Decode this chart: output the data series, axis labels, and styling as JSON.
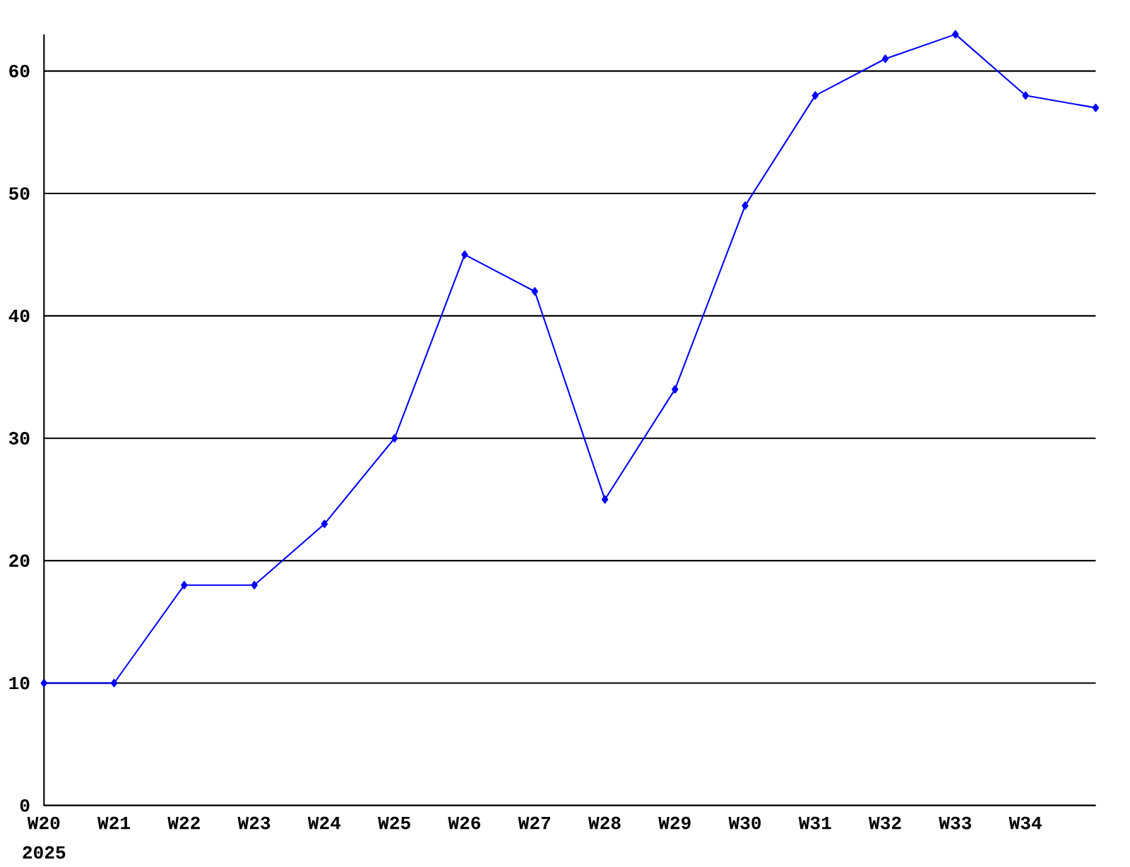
{
  "chart_data": {
    "type": "line",
    "categories": [
      "W20",
      "W21",
      "W22",
      "W23",
      "W24",
      "W25",
      "W26",
      "W27",
      "W28",
      "W29",
      "W30",
      "W31",
      "W32",
      "W33",
      "W34",
      null
    ],
    "values": [
      10,
      10,
      18,
      18,
      23,
      30,
      45,
      42,
      25,
      34,
      49,
      58,
      61,
      63,
      58,
      57
    ],
    "color": "#0000ff",
    "ylim": [
      0,
      63
    ],
    "yticks": [
      0,
      10,
      20,
      30,
      40,
      50,
      60
    ],
    "grid": "y",
    "marker": "diamond",
    "line_style": "solid",
    "annotations": [
      "2025"
    ]
  }
}
